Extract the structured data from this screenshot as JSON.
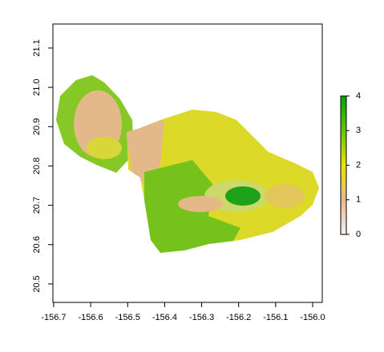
{
  "chart_data": {
    "type": "raster",
    "xlim": [
      -156.702,
      -155.974
    ],
    "ylim": [
      20.453,
      21.161
    ],
    "xticks": [
      -156.7,
      -156.6,
      -156.5,
      -156.4,
      -156.3,
      -156.2,
      -156.1,
      {
        "value": -156,
        "label": "-156.0"
      }
    ],
    "yticks": [
      20.5,
      20.6,
      20.7,
      20.8,
      20.9,
      {
        "value": 21,
        "label": "21.0"
      },
      21.1
    ],
    "legend": {
      "zlim": [
        0,
        4
      ],
      "ticks": [
        0,
        1,
        2,
        3,
        4
      ],
      "colors": [
        "#f2f2f2",
        "#ebb690",
        "#e6e600",
        "#63c600",
        "#00a600"
      ]
    }
  }
}
